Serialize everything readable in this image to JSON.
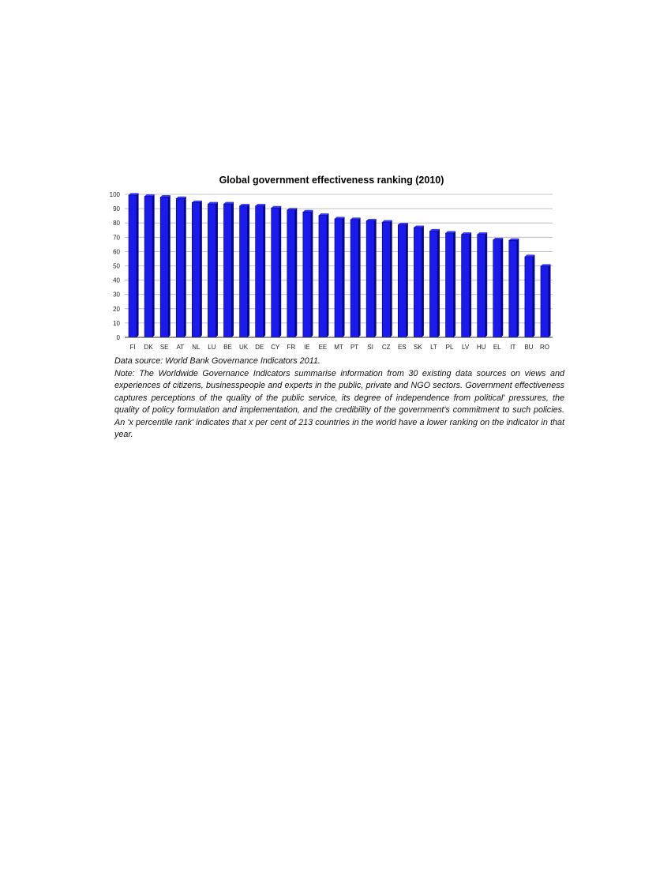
{
  "chart_data": {
    "type": "bar",
    "title": "Global government effectiveness ranking (2010)",
    "categories": [
      "FI",
      "DK",
      "SE",
      "AT",
      "NL",
      "LU",
      "BE",
      "UK",
      "DE",
      "CY",
      "FR",
      "IE",
      "EE",
      "MT",
      "PT",
      "SI",
      "CZ",
      "ES",
      "SK",
      "LT",
      "PL",
      "LV",
      "HU",
      "EL",
      "IT",
      "BU",
      "RO"
    ],
    "values": [
      99.5,
      98.6,
      98.1,
      97.1,
      94.3,
      93.3,
      93.3,
      91.9,
      91.9,
      90.5,
      89.1,
      87.7,
      85.3,
      82.9,
      82.4,
      81.5,
      80.6,
      78.7,
      76.8,
      74.4,
      72.9,
      72.0,
      72.0,
      68.2,
      67.8,
      56.4,
      49.8
    ],
    "ylim": [
      0,
      100
    ],
    "yticks": [
      0,
      10,
      20,
      30,
      40,
      50,
      60,
      70,
      80,
      90,
      100
    ],
    "grid": true,
    "legend": "none",
    "colors": {
      "bar": "#1a1aee",
      "bar_side": "#07078f",
      "grid": "#b0b0b0",
      "axis": "#333333"
    }
  },
  "caption": {
    "source": "Data source: World Bank Governance Indicators 2011.",
    "note": "Note: The Worldwide Governance Indicators summarise information from 30 existing data sources on views and experiences of citizens, businesspeople and experts in the public, private and NGO sectors. Government effectiveness captures perceptions of the quality of the public service, its degree of independence from political' pressures, the quality of policy formulation and implementation, and the credibility of the government's commitment to such policies. An 'x percentile rank' indicates that x per cent of 213 countries in the world have a lower ranking on the indicator in that year."
  }
}
